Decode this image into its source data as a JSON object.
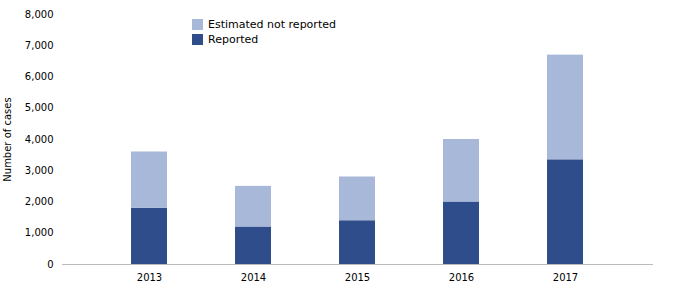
{
  "chart_data": {
    "type": "bar",
    "stacked": true,
    "categories": [
      "2013",
      "2014",
      "2015",
      "2016",
      "2017"
    ],
    "series": [
      {
        "name": "Reported",
        "color": "#2e4d8a",
        "values": [
          1800,
          1200,
          1400,
          2000,
          3350
        ]
      },
      {
        "name": "Estimated not reported",
        "color": "#a8b8d8",
        "values": [
          1800,
          1300,
          1400,
          2000,
          3350
        ]
      }
    ],
    "ylabel": "Number of cases",
    "ylim": [
      0,
      8000
    ],
    "yticks": [
      0,
      {
        "value": 1000,
        "label": "1,000"
      },
      {
        "value": 2000,
        "label": "2,000"
      },
      {
        "value": 3000,
        "label": "3,000"
      },
      {
        "value": 4000,
        "label": "4,000"
      },
      {
        "value": 5000,
        "label": "5,000"
      },
      {
        "value": 6000,
        "label": "6,000"
      },
      {
        "value": 7000,
        "label": "7,000"
      },
      {
        "value": 8000,
        "label": "8,000"
      }
    ],
    "grid": false,
    "legend": "upper left"
  }
}
